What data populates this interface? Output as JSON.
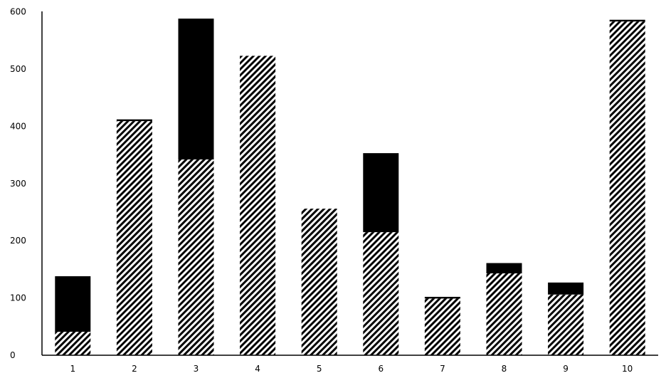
{
  "chart_data": {
    "type": "bar",
    "stacked": true,
    "title": "",
    "xlabel": "",
    "ylabel": "",
    "categories": [
      "1",
      "2",
      "3",
      "4",
      "5",
      "6",
      "7",
      "8",
      "9",
      "10"
    ],
    "ylim": [
      0,
      600
    ],
    "yticks": [
      0,
      100,
      200,
      300,
      400,
      500,
      600
    ],
    "grid": false,
    "legend": "none",
    "series": [
      {
        "style": "diagonal-hatch",
        "color": "#000000",
        "values": [
          41,
          409,
          342,
          523,
          256,
          215,
          99,
          143,
          106,
          583
        ]
      },
      {
        "style": "solid",
        "color": "#000000",
        "values": [
          97,
          3,
          246,
          0,
          0,
          138,
          3,
          18,
          21,
          3
        ]
      }
    ]
  }
}
